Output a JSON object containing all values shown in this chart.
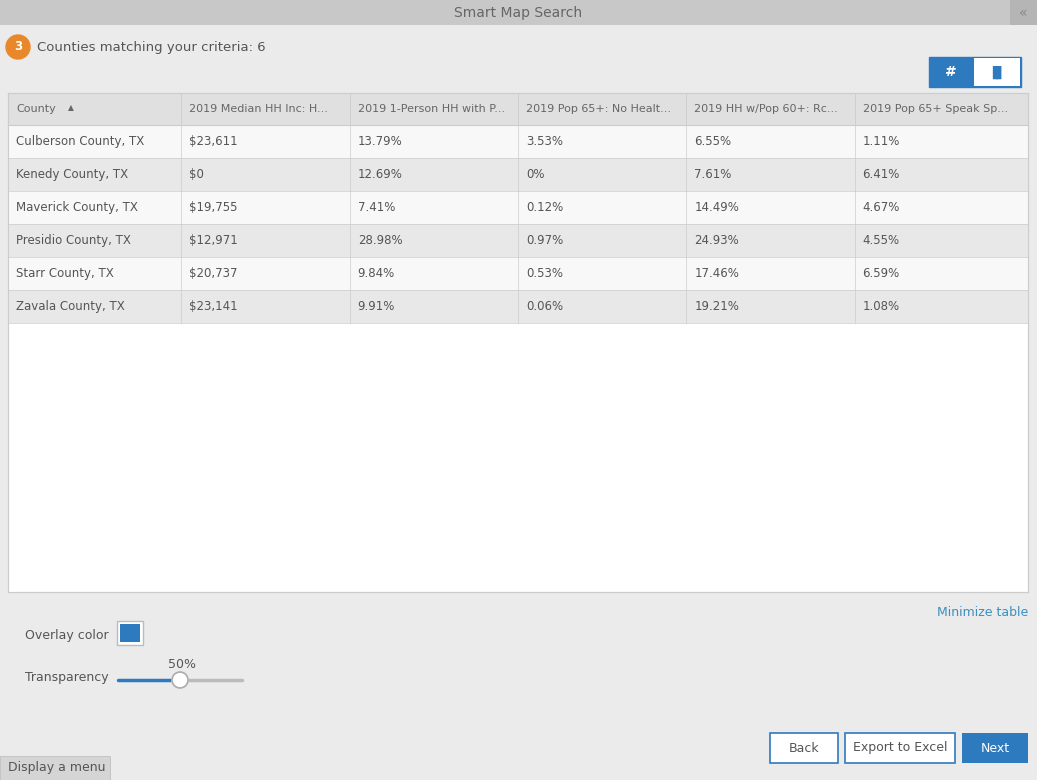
{
  "title": "Smart Map Search",
  "title_bg": "#cccccc",
  "panel_bg": "#ebebeb",
  "badge_number": "3",
  "badge_color": "#e8882a",
  "header_text": "Counties matching your criteria: 6",
  "columns": [
    "County",
    "2019 Median HH Inc: H...",
    "2019 1-Person HH with P...",
    "2019 Pop 65+: No Healt...",
    "2019 HH w/Pop 60+: Rc...",
    "2019 Pop 65+ Speak Sp..."
  ],
  "rows": [
    [
      "Culberson County, TX",
      "$23,611",
      "13.79%",
      "3.53%",
      "6.55%",
      "1.11%"
    ],
    [
      "Kenedy County, TX",
      "$0",
      "12.69%",
      "0%",
      "7.61%",
      "6.41%"
    ],
    [
      "Maverick County, TX",
      "$19,755",
      "7.41%",
      "0.12%",
      "14.49%",
      "4.67%"
    ],
    [
      "Presidio County, TX",
      "$12,971",
      "28.98%",
      "0.97%",
      "24.93%",
      "4.55%"
    ],
    [
      "Starr County, TX",
      "$20,737",
      "9.84%",
      "0.53%",
      "17.46%",
      "6.59%"
    ],
    [
      "Zavala County, TX",
      "$23,141",
      "9.91%",
      "0.06%",
      "19.21%",
      "1.08%"
    ]
  ],
  "overlay_color": "#2e7abf",
  "slider_color": "#2e7abf",
  "transparency_label": "50%",
  "overlay_label": "Overlay color",
  "transparency_text": "Transparency",
  "minimize_text": "Minimize table",
  "minimize_color": "#3a8fc0",
  "back_btn": "Back",
  "export_btn": "Export to Excel",
  "next_btn": "Next",
  "btn_bg_blue": "#2e7abf",
  "btn_text_white": "#ffffff",
  "btn_border_blue": "#2e7abf",
  "btn_border_gray": "#aaaaaa",
  "display_menu": "Display a menu",
  "text_color": "#555555",
  "header_text_color": "#666666",
  "grid_color": "#cccccc",
  "row_white_bg": "#f8f8f8",
  "row_gray_bg": "#e8e8e8",
  "table_header_bg": "#e0e0e0",
  "table_area_bg": "#f0f0f0"
}
